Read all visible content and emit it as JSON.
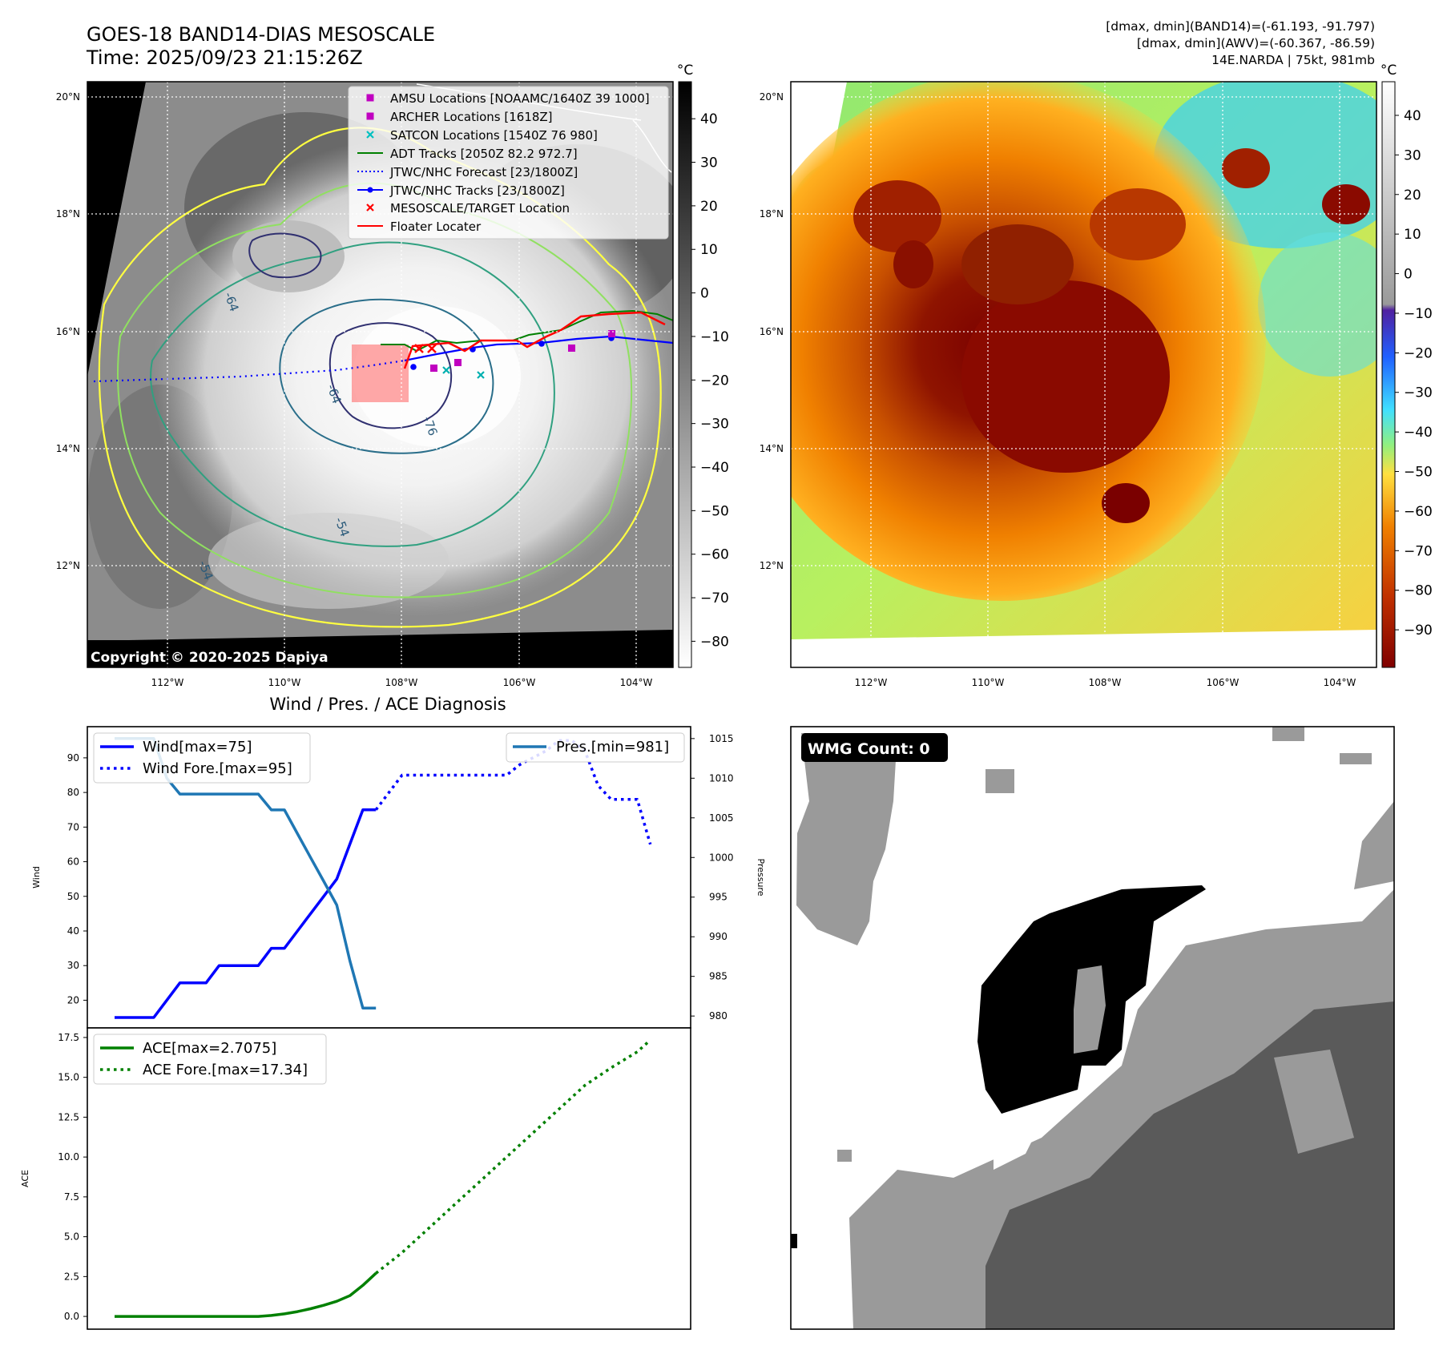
{
  "header": {
    "title_line1": "GOES-18 BAND14-DIAS MESOSCALE",
    "title_line2": "Time: 2025/09/23 21:15:26Z",
    "info_line1": "[dmax, dmin](BAND14)=(-61.193, -91.797)",
    "info_line2": "[dmax, dmin](AWV)=(-60.367, -86.59)",
    "info_line3": "14E.NARDA | 75kt, 981mb"
  },
  "maps": {
    "lat_labels": [
      "20°N",
      "18°N",
      "16°N",
      "14°N",
      "12°N"
    ],
    "lon_labels": [
      "112°W",
      "110°W",
      "108°W",
      "106°W",
      "104°W"
    ],
    "copyright": "Copyright © 2020-2025 Dapiya",
    "contour_labels": [
      "-64",
      "-76",
      "-54",
      "-54",
      "-64"
    ]
  },
  "colorbar_left": {
    "unit": "°C",
    "ticks": [
      "40",
      "30",
      "20",
      "10",
      "0",
      "−10",
      "−20",
      "−30",
      "−40",
      "−50",
      "−60",
      "−70",
      "−80"
    ]
  },
  "colorbar_right": {
    "unit": "°C",
    "ticks": [
      "40",
      "30",
      "20",
      "10",
      "0",
      "−10",
      "−20",
      "−30",
      "−40",
      "−50",
      "−60",
      "−70",
      "−80",
      "−90"
    ],
    "colors": {
      "warm": "#ffffff",
      "cold": "#800000",
      "mid": "#ffe040",
      "cyan": "#40e0ff"
    }
  },
  "legend_map": {
    "items": [
      {
        "label": "AMSU Locations [NOAAMC/1640Z 39 1000]",
        "marker": "square",
        "color": "#c000c0"
      },
      {
        "label": "ARCHER Locations [1618Z]",
        "marker": "square",
        "color": "#c000c0"
      },
      {
        "label": "SATCON Locations [1540Z 76 980]",
        "marker": "x",
        "color": "#00c0c0"
      },
      {
        "label": "ADT Tracks [2050Z 82.2 972.7]",
        "marker": "line",
        "color": "#008000"
      },
      {
        "label": "JTWC/NHC Forecast [23/1800Z]",
        "marker": "dotted",
        "color": "#0000ff"
      },
      {
        "label": "JTWC/NHC Tracks [23/1800Z]",
        "marker": "line-dot",
        "color": "#0000ff"
      },
      {
        "label": "MESOSCALE/TARGET Location",
        "marker": "x",
        "color": "#ff0000"
      },
      {
        "label": "Floater Locater",
        "marker": "line",
        "color": "#ff0000"
      }
    ]
  },
  "diagnosis": {
    "title": "Wind / Pres. / ACE Diagnosis",
    "wind_ylabel": "Wind",
    "pres_ylabel": "Pressure",
    "ace_ylabel": "ACE",
    "legend_wind": "Wind[max=75]",
    "legend_wind_fore": "Wind Fore.[max=95]",
    "legend_pres": "Pres.[min=981]",
    "legend_ace": "ACE[max=2.7075]",
    "legend_ace_fore": "ACE Fore.[max=17.34]"
  },
  "wmg": {
    "label": "WMG Count: 0"
  },
  "chart_data": [
    {
      "type": "line",
      "name": "Wind",
      "ylabel": "Wind",
      "ylim": [
        12,
        99
      ],
      "yticks": [
        20,
        30,
        40,
        50,
        60,
        70,
        80,
        90
      ],
      "xlim": [
        0,
        42
      ],
      "series": [
        {
          "name": "Wind[max=75]",
          "style": "solid",
          "color": "#0000ff",
          "x": [
            0,
            1,
            2,
            3,
            4,
            5,
            6,
            7,
            8,
            9,
            10,
            11,
            12,
            13,
            14,
            15,
            16,
            17,
            18,
            19,
            20
          ],
          "y": [
            15,
            15,
            15,
            15,
            20,
            25,
            25,
            25,
            30,
            30,
            30,
            30,
            35,
            35,
            40,
            45,
            50,
            55,
            65,
            75,
            75
          ]
        },
        {
          "name": "Wind Fore.[max=95]",
          "style": "dotted",
          "color": "#0000ff",
          "x": [
            20,
            21,
            22,
            23,
            24,
            25,
            26,
            27,
            28,
            29,
            30,
            31,
            32,
            33,
            34,
            35,
            36,
            37,
            38,
            39,
            40,
            41
          ],
          "y": [
            75,
            80,
            85,
            85,
            85,
            85,
            85,
            85,
            85,
            85,
            85,
            88,
            90,
            92,
            95,
            95,
            92,
            82,
            78,
            78,
            78,
            65
          ]
        }
      ]
    },
    {
      "type": "line",
      "name": "Pressure",
      "ylabel": "Pressure",
      "ylim": [
        978.5,
        1016.5
      ],
      "yticks": [
        980,
        985,
        990,
        995,
        1000,
        1005,
        1010,
        1015
      ],
      "xlim": [
        0,
        42
      ],
      "series": [
        {
          "name": "Pres.[min=981]",
          "style": "solid",
          "color": "#1f77b4",
          "x": [
            0,
            1,
            2,
            3,
            4,
            5,
            6,
            7,
            8,
            9,
            10,
            11,
            12,
            13,
            14,
            15,
            16,
            17,
            18,
            19,
            20
          ],
          "y": [
            1015,
            1015,
            1015,
            1015,
            1010,
            1008,
            1008,
            1008,
            1008,
            1008,
            1008,
            1008,
            1006,
            1006,
            1003,
            1000,
            997,
            994,
            987,
            981,
            981
          ]
        }
      ]
    },
    {
      "type": "line",
      "name": "ACE",
      "ylabel": "ACE",
      "ylim": [
        -0.8,
        18.1
      ],
      "yticks": [
        0.0,
        2.5,
        5.0,
        7.5,
        10.0,
        12.5,
        15.0,
        17.5
      ],
      "xlim": [
        0,
        42
      ],
      "series": [
        {
          "name": "ACE[max=2.7075]",
          "style": "solid",
          "color": "#008000",
          "x": [
            0,
            2,
            4,
            6,
            8,
            10,
            11,
            12,
            13,
            14,
            15,
            16,
            17,
            18,
            19,
            20
          ],
          "y": [
            0,
            0,
            0,
            0,
            0,
            0,
            0,
            0.06,
            0.16,
            0.3,
            0.48,
            0.7,
            0.95,
            1.3,
            1.95,
            2.7075
          ]
        },
        {
          "name": "ACE Fore.[max=17.34]",
          "style": "dotted",
          "color": "#008000",
          "x": [
            20,
            22,
            24,
            26,
            28,
            30,
            32,
            34,
            36,
            38,
            40,
            41
          ],
          "y": [
            2.7075,
            4.0,
            5.5,
            7.0,
            8.5,
            10.0,
            11.5,
            13.0,
            14.5,
            15.6,
            16.6,
            17.34
          ]
        }
      ]
    }
  ]
}
